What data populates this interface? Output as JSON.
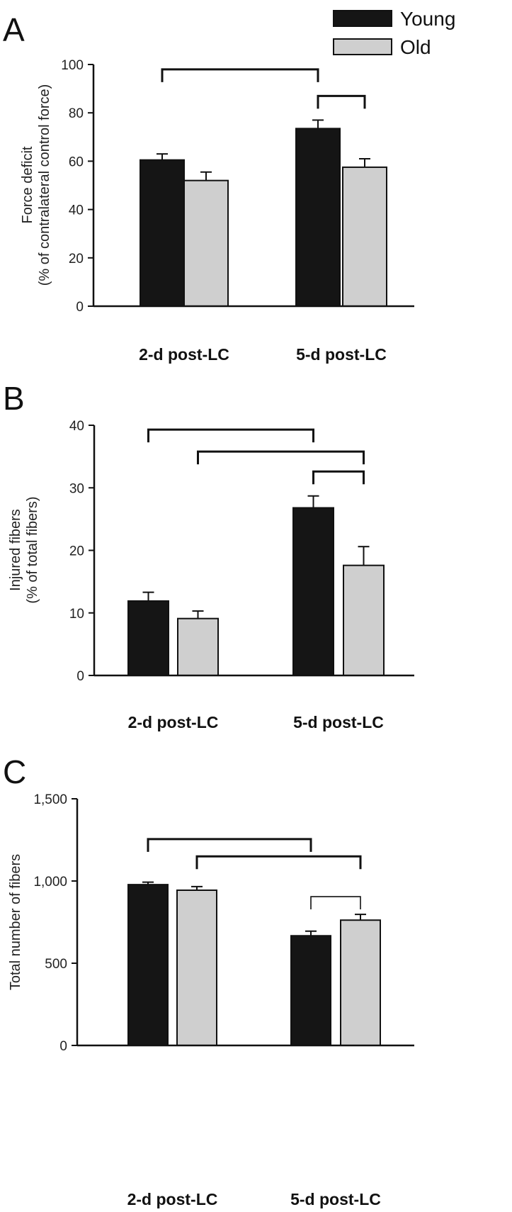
{
  "legend": [
    {
      "name": "Young",
      "color": "#151515"
    },
    {
      "name": "Old",
      "color": "#cfcfcf"
    }
  ],
  "chart_data": [
    {
      "type": "bar",
      "panel": "A",
      "categories": [
        "2-d post-LC",
        "5-d post-LC"
      ],
      "series": [
        {
          "name": "Young",
          "values": [
            60.5,
            73.5
          ],
          "errors": [
            2.5,
            3.5
          ]
        },
        {
          "name": "Old",
          "values": [
            52,
            57.5
          ],
          "errors": [
            3.5,
            3.5
          ]
        }
      ],
      "ylabel_line1": "Force deficit",
      "ylabel_line2": "(% of contralateral control force)",
      "ylim": [
        0,
        100
      ],
      "yticks": [
        0,
        20,
        40,
        60,
        80,
        100
      ],
      "ytick_labels": [
        "0",
        "20",
        "40",
        "60",
        "80",
        "100"
      ],
      "brackets": [
        {
          "from": [
            0,
            0
          ],
          "to": [
            1,
            0
          ],
          "y": 98,
          "style": "thick"
        },
        {
          "from": [
            1,
            0
          ],
          "to": [
            1,
            1
          ],
          "y": 87,
          "style": "thick"
        }
      ]
    },
    {
      "type": "bar",
      "panel": "B",
      "categories": [
        "2-d post-LC",
        "5-d post-LC"
      ],
      "series": [
        {
          "name": "Young",
          "values": [
            11.9,
            26.8
          ],
          "errors": [
            1.4,
            1.9
          ]
        },
        {
          "name": "Old",
          "values": [
            9.1,
            17.6
          ],
          "errors": [
            1.2,
            3.0
          ]
        }
      ],
      "ylabel_line1": "Injured fibers",
      "ylabel_line2": "(% of total fibers)",
      "ylim": [
        0,
        40
      ],
      "yticks": [
        0,
        10,
        20,
        30,
        40
      ],
      "ytick_labels": [
        "0",
        "10",
        "20",
        "30",
        "40"
      ],
      "brackets": [
        {
          "from": [
            0,
            0
          ],
          "to": [
            1,
            0
          ],
          "y": 39.3,
          "style": "thick"
        },
        {
          "from": [
            0,
            1
          ],
          "to": [
            1,
            1
          ],
          "y": 35.8,
          "style": "thick"
        },
        {
          "from": [
            1,
            0
          ],
          "to": [
            1,
            1
          ],
          "y": 32.6,
          "style": "thick"
        }
      ]
    },
    {
      "type": "bar",
      "panel": "C",
      "categories": [
        "2-d post-LC",
        "5-d post-LC"
      ],
      "series": [
        {
          "name": "Young",
          "values": [
            978,
            667
          ],
          "errors": [
            15,
            28
          ]
        },
        {
          "name": "Old",
          "values": [
            944,
            762
          ],
          "errors": [
            22,
            35
          ]
        }
      ],
      "ylabel_line1": "Total number of fibers",
      "ylabel_line2": "",
      "ylim": [
        0,
        1500
      ],
      "yticks": [
        0,
        500,
        1000,
        1500
      ],
      "ytick_labels": [
        "0",
        "500",
        "1,000",
        "1,500"
      ],
      "brackets": [
        {
          "from": [
            0,
            0
          ],
          "to": [
            1,
            0
          ],
          "y": 1255,
          "style": "thick"
        },
        {
          "from": [
            0,
            1
          ],
          "to": [
            1,
            1
          ],
          "y": 1150,
          "style": "thick"
        },
        {
          "from": [
            1,
            0
          ],
          "to": [
            1,
            1
          ],
          "y": 905,
          "style": "thin"
        }
      ]
    }
  ]
}
